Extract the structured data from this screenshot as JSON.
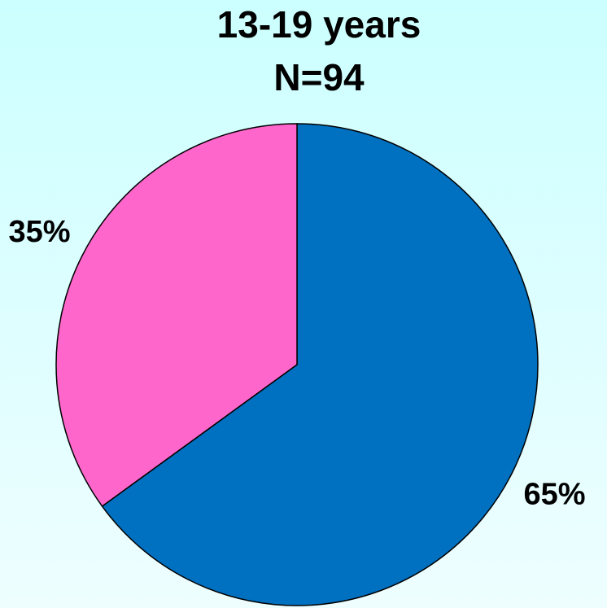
{
  "chart_data": {
    "type": "pie",
    "title": "13-19 years",
    "subtitle": "N=94",
    "values": [
      65,
      35
    ],
    "value_labels": [
      "65%",
      "35%"
    ],
    "colors": [
      "#0070c0",
      "#ff66cc"
    ]
  }
}
